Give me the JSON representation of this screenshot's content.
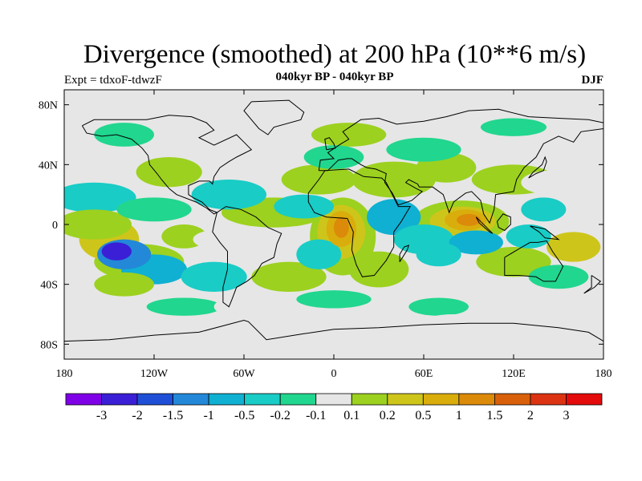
{
  "title": "Divergence (smoothed) at 200 hPa (10**6 m/s)",
  "experiment": "Expt = tdxoF-tdwzF",
  "subtitle": "040kyr BP - 040kyr BP",
  "season": "DJF",
  "map": {
    "projection": "cylindrical-equidistant",
    "lon_range": [
      -180,
      180
    ],
    "lat_range": [
      -90,
      90
    ],
    "lat_ticks": [
      {
        "value": 80,
        "label": "80N"
      },
      {
        "value": 40,
        "label": "40N"
      },
      {
        "value": 0,
        "label": "0"
      },
      {
        "value": -40,
        "label": "40S"
      },
      {
        "value": -80,
        "label": "80S"
      }
    ],
    "lon_ticks": [
      {
        "value": -180,
        "label": "180"
      },
      {
        "value": -120,
        "label": "120W"
      },
      {
        "value": -60,
        "label": "60W"
      },
      {
        "value": 0,
        "label": "0"
      },
      {
        "value": 60,
        "label": "60E"
      },
      {
        "value": 120,
        "label": "120E"
      },
      {
        "value": 180,
        "label": "180"
      }
    ],
    "background_color": "#e6e6e6",
    "features": [
      {
        "lon": 90,
        "lat": 3,
        "rx": 8,
        "ry": 4,
        "level": 11
      },
      {
        "lon": 88,
        "lat": 3,
        "rx": 14,
        "ry": 7,
        "level": 10
      },
      {
        "lon": 86,
        "lat": 2,
        "rx": 22,
        "ry": 10,
        "level": 9
      },
      {
        "lon": 85,
        "lat": 2,
        "rx": 32,
        "ry": 14,
        "level": 8
      },
      {
        "lon": 5,
        "lat": -2,
        "rx": 5,
        "ry": 7,
        "level": 11
      },
      {
        "lon": 5,
        "lat": -3,
        "rx": 10,
        "ry": 12,
        "level": 10
      },
      {
        "lon": 5,
        "lat": -5,
        "rx": 16,
        "ry": 18,
        "level": 9
      },
      {
        "lon": 6,
        "lat": -8,
        "rx": 22,
        "ry": 26,
        "level": 8
      },
      {
        "lon": -150,
        "lat": -10,
        "rx": 20,
        "ry": 14,
        "level": 9
      },
      {
        "lon": -130,
        "lat": -25,
        "rx": 30,
        "ry": 12,
        "level": 8
      },
      {
        "lon": -160,
        "lat": 0,
        "rx": 25,
        "ry": 10,
        "level": 8
      },
      {
        "lon": -100,
        "lat": -8,
        "rx": 15,
        "ry": 8,
        "level": 8
      },
      {
        "lon": -80,
        "lat": -10,
        "rx": 14,
        "ry": 6,
        "level": 7
      },
      {
        "lon": -40,
        "lat": 8,
        "rx": 35,
        "ry": 10,
        "level": 8
      },
      {
        "lon": -10,
        "lat": 30,
        "rx": 25,
        "ry": 10,
        "level": 8
      },
      {
        "lon": 40,
        "lat": 30,
        "rx": 28,
        "ry": 12,
        "level": 8
      },
      {
        "lon": 75,
        "lat": 38,
        "rx": 20,
        "ry": 10,
        "level": 8
      },
      {
        "lon": 120,
        "lat": 30,
        "rx": 28,
        "ry": 10,
        "level": 8
      },
      {
        "lon": 145,
        "lat": 28,
        "rx": 20,
        "ry": 8,
        "level": 7
      },
      {
        "lon": -110,
        "lat": 35,
        "rx": 22,
        "ry": 10,
        "level": 8
      },
      {
        "lon": -40,
        "lat": 45,
        "rx": 25,
        "ry": 8,
        "level": 7
      },
      {
        "lon": 10,
        "lat": 60,
        "rx": 25,
        "ry": 8,
        "level": 8
      },
      {
        "lon": -30,
        "lat": -35,
        "rx": 25,
        "ry": 10,
        "level": 8
      },
      {
        "lon": 30,
        "lat": -30,
        "rx": 20,
        "ry": 12,
        "level": 8
      },
      {
        "lon": 120,
        "lat": -25,
        "rx": 25,
        "ry": 10,
        "level": 8
      },
      {
        "lon": 160,
        "lat": -15,
        "rx": 18,
        "ry": 10,
        "level": 9
      },
      {
        "lon": 100,
        "lat": -45,
        "rx": 30,
        "ry": 8,
        "level": 7
      },
      {
        "lon": -140,
        "lat": -40,
        "rx": 20,
        "ry": 8,
        "level": 8
      },
      {
        "lon": -60,
        "lat": -55,
        "rx": 20,
        "ry": 7,
        "level": 7
      },
      {
        "lon": 80,
        "lat": -65,
        "rx": 20,
        "ry": 5,
        "level": 7
      },
      {
        "lon": -145,
        "lat": -18,
        "rx": 10,
        "ry": 6,
        "level": 1
      },
      {
        "lon": -140,
        "lat": -20,
        "rx": 18,
        "ry": 10,
        "level": 3
      },
      {
        "lon": -120,
        "lat": -30,
        "rx": 22,
        "ry": 10,
        "level": 4
      },
      {
        "lon": -160,
        "lat": 18,
        "rx": 28,
        "ry": 10,
        "level": 5
      },
      {
        "lon": -70,
        "lat": 20,
        "rx": 25,
        "ry": 10,
        "level": 5
      },
      {
        "lon": -20,
        "lat": 12,
        "rx": 20,
        "ry": 8,
        "level": 5
      },
      {
        "lon": 40,
        "lat": 5,
        "rx": 18,
        "ry": 12,
        "level": 4
      },
      {
        "lon": 60,
        "lat": -10,
        "rx": 20,
        "ry": 10,
        "level": 5
      },
      {
        "lon": 95,
        "lat": -12,
        "rx": 18,
        "ry": 8,
        "level": 4
      },
      {
        "lon": 70,
        "lat": -20,
        "rx": 15,
        "ry": 8,
        "level": 5
      },
      {
        "lon": 140,
        "lat": 10,
        "rx": 15,
        "ry": 8,
        "level": 5
      },
      {
        "lon": 130,
        "lat": -8,
        "rx": 15,
        "ry": 8,
        "level": 5
      },
      {
        "lon": -80,
        "lat": -35,
        "rx": 22,
        "ry": 10,
        "level": 5
      },
      {
        "lon": -10,
        "lat": -20,
        "rx": 15,
        "ry": 10,
        "level": 5
      },
      {
        "lon": -120,
        "lat": 10,
        "rx": 25,
        "ry": 8,
        "level": 6
      },
      {
        "lon": 0,
        "lat": 45,
        "rx": 20,
        "ry": 8,
        "level": 6
      },
      {
        "lon": 60,
        "lat": 50,
        "rx": 25,
        "ry": 8,
        "level": 6
      },
      {
        "lon": -140,
        "lat": 60,
        "rx": 20,
        "ry": 8,
        "level": 6
      },
      {
        "lon": 120,
        "lat": 65,
        "rx": 22,
        "ry": 6,
        "level": 6
      },
      {
        "lon": 150,
        "lat": -35,
        "rx": 20,
        "ry": 8,
        "level": 6
      },
      {
        "lon": 0,
        "lat": -50,
        "rx": 25,
        "ry": 6,
        "level": 6
      },
      {
        "lon": -100,
        "lat": -55,
        "rx": 25,
        "ry": 6,
        "level": 6
      },
      {
        "lon": 70,
        "lat": -55,
        "rx": 20,
        "ry": 6,
        "level": 6
      }
    ]
  },
  "colorbar": {
    "colors": [
      "#7f00e6",
      "#3a1fd6",
      "#1f4fd6",
      "#2388d8",
      "#0fb0d2",
      "#19ccc6",
      "#21d68e",
      "#e6e6e6",
      "#9cd11f",
      "#cec51b",
      "#d9ad0c",
      "#db8a0a",
      "#d8600a",
      "#dc3312",
      "#e30b0b"
    ],
    "labels": [
      "-3",
      "-2",
      "-1.5",
      "-1",
      "-0.5",
      "-0.2",
      "-0.1",
      "0.1",
      "0.2",
      "0.5",
      "1",
      "1.5",
      "2",
      "3"
    ]
  }
}
